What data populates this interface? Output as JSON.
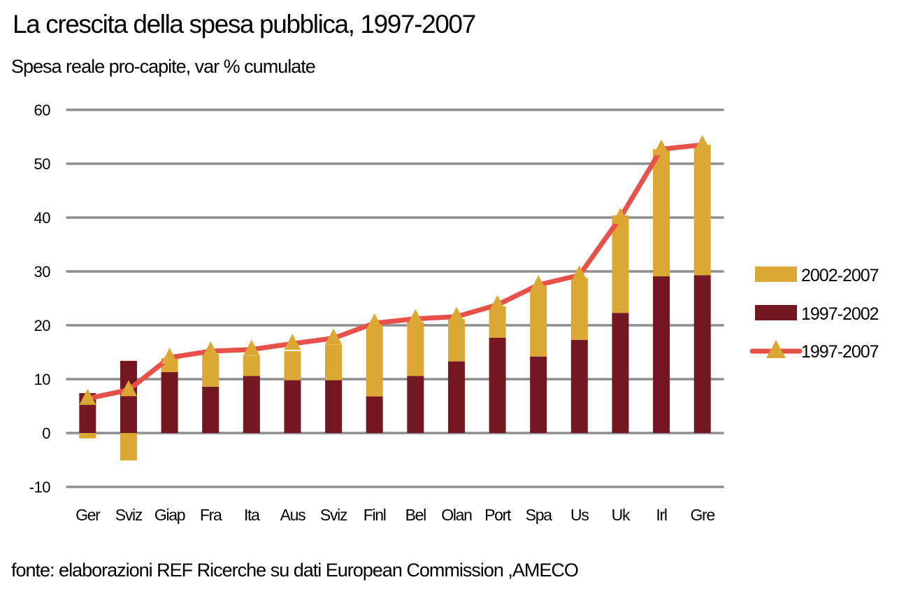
{
  "chart_data": {
    "type": "bar",
    "title": "La crescita della spesa pubblica, 1997-2007",
    "subtitle": "Spesa reale pro-capite, var % cumulate",
    "source": "fonte: elaborazioni REF Ricerche su dati European Commission ,AMECO",
    "xlabel": "",
    "ylabel": "",
    "ylim": [
      -10,
      60
    ],
    "yticks": [
      60,
      50,
      40,
      30,
      20,
      10,
      0,
      -10
    ],
    "grid": true,
    "legend_position": "right",
    "categories": [
      "Ger",
      "Sviz",
      "Giap",
      "Fra",
      "Ita",
      "Aus",
      "Sviz",
      "Finl",
      "Bel",
      "Olan",
      "Port",
      "Spa",
      "Us",
      "Uk",
      "Irl",
      "Gre"
    ],
    "series": [
      {
        "name": "1997-2002",
        "kind": "stacked-bar",
        "color": "#731722",
        "values": [
          7.4,
          13.4,
          11.3,
          8.6,
          10.6,
          9.8,
          9.8,
          6.8,
          10.6,
          13.3,
          17.7,
          14.2,
          17.3,
          22.3,
          29.1,
          29.3
        ]
      },
      {
        "name": "2002-2007",
        "kind": "stacked-bar",
        "color": "#DCA834",
        "values": [
          -1.0,
          -5.1,
          2.6,
          6.1,
          3.7,
          5.4,
          6.6,
          13.4,
          10.0,
          7.8,
          5.8,
          13.1,
          11.5,
          18.1,
          23.6,
          24.2
        ]
      },
      {
        "name": "1997-2007",
        "kind": "line",
        "color": "#E8504A",
        "marker_color": "#DCA834",
        "values": [
          6.4,
          8.0,
          14.0,
          15.2,
          15.5,
          16.6,
          17.6,
          20.4,
          21.2,
          21.6,
          23.8,
          27.5,
          29.3,
          40.0,
          52.7,
          53.5
        ]
      }
    ],
    "legend": [
      {
        "label": "2002-2007"
      },
      {
        "label": "1997-2002"
      },
      {
        "label": "1997-2007"
      }
    ]
  }
}
